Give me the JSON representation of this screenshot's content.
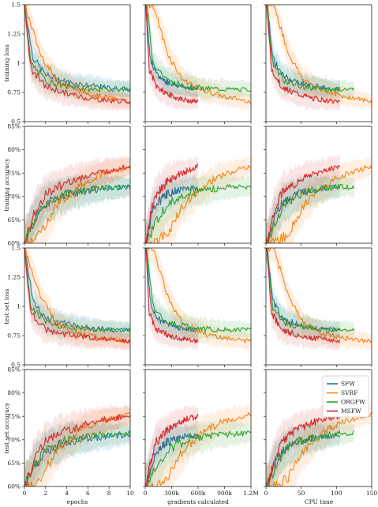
{
  "chart_data": {
    "type": "line",
    "columns": [
      {
        "xlabel": "epochs",
        "xlim": [
          0,
          10
        ],
        "xticks": [
          0,
          2,
          4,
          6,
          8,
          10
        ],
        "xticklabels": [
          "0",
          "2",
          "4",
          "6",
          "8",
          "10"
        ]
      },
      {
        "xlabel": "gradients calculated",
        "xlim": [
          0,
          1200000
        ],
        "xticks": [
          0,
          300000,
          600000,
          900000,
          1200000
        ],
        "xticklabels": [
          "0",
          "300k",
          "600k",
          "900k",
          "1.2M"
        ]
      },
      {
        "xlabel": "CPU time",
        "xlim": [
          0,
          150
        ],
        "xticks": [
          0,
          50,
          100,
          150
        ],
        "xticklabels": [
          "0",
          "50",
          "100",
          "150"
        ]
      }
    ],
    "rows": [
      {
        "ylabel": "training loss",
        "ylim": [
          0.5,
          1.5
        ],
        "yticks": [
          0.5,
          0.75,
          1,
          1.25,
          1.5
        ],
        "yticklabels": [
          "0.5",
          "0.75",
          "1",
          "1.25",
          "1.5"
        ],
        "kind": "loss"
      },
      {
        "ylabel": "training accuracy",
        "ylim": [
          0.6,
          0.85
        ],
        "yticks": [
          0.6,
          0.65,
          0.7,
          0.75,
          0.8,
          0.85
        ],
        "yticklabels": [
          "60%",
          "65%",
          "70%",
          "75%",
          "80%",
          "85%"
        ],
        "kind": "acc"
      },
      {
        "ylabel": "test set loss",
        "ylim": [
          0.5,
          1.5
        ],
        "yticks": [
          0.5,
          0.75,
          1,
          1.25,
          1.5
        ],
        "yticklabels": [
          "0.5",
          "0.75",
          "1",
          "1.25",
          "1.5"
        ],
        "kind": "loss"
      },
      {
        "ylabel": "test set accuracy",
        "ylim": [
          0.6,
          0.85
        ],
        "yticks": [
          0.6,
          0.65,
          0.7,
          0.75,
          0.8,
          0.85
        ],
        "yticklabels": [
          "60%",
          "65%",
          "70%",
          "75%",
          "80%",
          "85%"
        ],
        "kind": "acc"
      }
    ],
    "legend": {
      "location": "lower right of the bottom-right panel",
      "entries": [
        "SFW",
        "SVRF",
        "ORGFW",
        "MSFW"
      ]
    },
    "series": [
      {
        "name": "SFW",
        "color": "#1f77b4",
        "xmax": [
          10,
          600000,
          105
        ],
        "y": [
          [
            [
              0,
              1.5
            ],
            [
              0.8,
              1.05
            ],
            [
              2,
              0.9
            ],
            [
              4,
              0.84
            ],
            [
              6,
              0.81
            ],
            [
              8,
              0.79
            ],
            [
              10,
              0.78
            ]
          ],
          [
            [
              0,
              0.6
            ],
            [
              1,
              0.655
            ],
            [
              2,
              0.685
            ],
            [
              4,
              0.705
            ],
            [
              6,
              0.713
            ],
            [
              8,
              0.718
            ],
            [
              10,
              0.72
            ]
          ],
          [
            [
              0,
              1.5
            ],
            [
              0.8,
              1.05
            ],
            [
              2,
              0.9
            ],
            [
              4,
              0.85
            ],
            [
              6,
              0.82
            ],
            [
              8,
              0.8
            ],
            [
              10,
              0.8
            ]
          ],
          [
            [
              0,
              0.6
            ],
            [
              1,
              0.645
            ],
            [
              2,
              0.675
            ],
            [
              4,
              0.695
            ],
            [
              6,
              0.703
            ],
            [
              8,
              0.707
            ],
            [
              10,
              0.71
            ]
          ]
        ]
      },
      {
        "name": "SVRF",
        "color": "#ff7f0e",
        "xmax": [
          10,
          1200000,
          150
        ],
        "y": [
          [
            [
              0,
              1.5
            ],
            [
              1.5,
              1.08
            ],
            [
              3,
              0.86
            ],
            [
              5,
              0.77
            ],
            [
              7,
              0.72
            ],
            [
              10,
              0.67
            ]
          ],
          [
            [
              0,
              0.6
            ],
            [
              1.5,
              0.62
            ],
            [
              3,
              0.68
            ],
            [
              5,
              0.72
            ],
            [
              7,
              0.745
            ],
            [
              10,
              0.765
            ]
          ],
          [
            [
              0,
              1.5
            ],
            [
              1.5,
              1.08
            ],
            [
              3,
              0.86
            ],
            [
              5,
              0.77
            ],
            [
              7,
              0.73
            ],
            [
              10,
              0.7
            ]
          ],
          [
            [
              0,
              0.6
            ],
            [
              1.5,
              0.62
            ],
            [
              3,
              0.675
            ],
            [
              5,
              0.715
            ],
            [
              7,
              0.738
            ],
            [
              10,
              0.755
            ]
          ]
        ]
      },
      {
        "name": "ORGFW",
        "color": "#2ca02c",
        "xmax": [
          10,
          1200000,
          125
        ],
        "y": [
          [
            [
              0,
              1.5
            ],
            [
              0.6,
              1.0
            ],
            [
              2,
              0.85
            ],
            [
              4,
              0.8
            ],
            [
              6,
              0.78
            ],
            [
              8,
              0.775
            ],
            [
              10,
              0.775
            ]
          ],
          [
            [
              0,
              0.6
            ],
            [
              1,
              0.65
            ],
            [
              2,
              0.685
            ],
            [
              4,
              0.708
            ],
            [
              6,
              0.715
            ],
            [
              8,
              0.72
            ],
            [
              10,
              0.72
            ]
          ],
          [
            [
              0,
              1.5
            ],
            [
              0.6,
              1.0
            ],
            [
              2,
              0.86
            ],
            [
              4,
              0.82
            ],
            [
              6,
              0.805
            ],
            [
              8,
              0.8
            ],
            [
              10,
              0.8
            ]
          ],
          [
            [
              0,
              0.6
            ],
            [
              1,
              0.645
            ],
            [
              2,
              0.68
            ],
            [
              4,
              0.7
            ],
            [
              6,
              0.708
            ],
            [
              8,
              0.712
            ],
            [
              10,
              0.715
            ]
          ]
        ]
      },
      {
        "name": "MSFW",
        "color": "#d62728",
        "xmax": [
          10,
          600000,
          105
        ],
        "y": [
          [
            [
              0,
              1.5
            ],
            [
              0.6,
              0.95
            ],
            [
              2,
              0.8
            ],
            [
              4,
              0.74
            ],
            [
              6,
              0.7
            ],
            [
              8,
              0.68
            ],
            [
              10,
              0.67
            ]
          ],
          [
            [
              0,
              0.6
            ],
            [
              1,
              0.67
            ],
            [
              2,
              0.705
            ],
            [
              4,
              0.73
            ],
            [
              6,
              0.745
            ],
            [
              8,
              0.755
            ],
            [
              10,
              0.765
            ]
          ],
          [
            [
              0,
              1.5
            ],
            [
              0.6,
              0.95
            ],
            [
              2,
              0.8
            ],
            [
              4,
              0.76
            ],
            [
              6,
              0.73
            ],
            [
              8,
              0.72
            ],
            [
              10,
              0.7
            ]
          ],
          [
            [
              0,
              0.6
            ],
            [
              1,
              0.66
            ],
            [
              2,
              0.695
            ],
            [
              4,
              0.72
            ],
            [
              6,
              0.735
            ],
            [
              8,
              0.745
            ],
            [
              10,
              0.75
            ]
          ]
        ]
      }
    ]
  }
}
